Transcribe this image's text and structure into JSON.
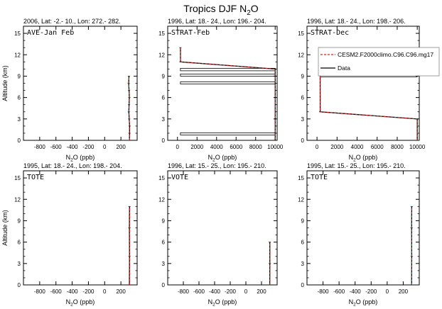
{
  "title": {
    "main": "Tropics DJF N",
    "sub": "2",
    "tail": "O"
  },
  "xlabel": {
    "main": "N",
    "sub": "2",
    "tail": "O (ppb)"
  },
  "ylabel": "Altitude (km)",
  "legend": {
    "items": [
      {
        "label": "CESM2.F2000climo.C96.C96.mg17",
        "color": "#e41a1c",
        "dash": true
      },
      {
        "label": "Data",
        "color": "#000000",
        "dash": false
      }
    ]
  },
  "chart_data": [
    {
      "type": "line",
      "header": "2006, Lat: -2.- 10., Lon: 272.- 282.",
      "label": "AVE-Jan Feb",
      "xlim": [
        -1000,
        400
      ],
      "ylim": [
        0,
        16
      ],
      "xticks": [
        -800,
        -600,
        -400,
        -200,
        0,
        200
      ],
      "yticks": [
        0,
        3,
        6,
        9,
        12,
        15
      ],
      "series": [
        {
          "color": "#000000",
          "points": [
            [
              305,
              0
            ],
            [
              306,
              1
            ],
            [
              307,
              2
            ],
            [
              302,
              3
            ],
            [
              298,
              4
            ],
            [
              300,
              5
            ],
            [
              304,
              6
            ],
            [
              300,
              7
            ],
            [
              296,
              8
            ],
            [
              299,
              9
            ]
          ]
        },
        {
          "color": "#e41a1c",
          "dash": true,
          "points": [
            [
              304,
              0
            ],
            [
              305,
              1
            ],
            [
              305,
              2
            ],
            [
              303,
              3
            ],
            [
              300,
              4
            ],
            [
              301,
              5
            ],
            [
              302,
              6
            ],
            [
              301,
              7
            ],
            [
              298,
              8
            ],
            [
              300,
              9
            ]
          ]
        }
      ],
      "bands": []
    },
    {
      "type": "line",
      "header": "1996, Lat: 18.- 24., Lon: 196.- 204.",
      "label": "STRAT-Feb",
      "xlim": [
        -1000,
        10200
      ],
      "ylim": [
        0,
        16
      ],
      "xticks": [
        0,
        2000,
        4000,
        6000,
        8000,
        10000
      ],
      "yticks": [
        0,
        3,
        6,
        9,
        12,
        15
      ],
      "series": [
        {
          "color": "#000000",
          "points": [
            [
              300,
              13
            ],
            [
              310,
              11
            ],
            [
              10000,
              10
            ],
            [
              10000,
              0
            ]
          ]
        },
        {
          "color": "#e41a1c",
          "dash": true,
          "points": [
            [
              305,
              13
            ],
            [
              312,
              11
            ],
            [
              10000,
              10
            ],
            [
              10000,
              0
            ]
          ]
        }
      ],
      "bands": [
        {
          "x1": 300,
          "x2": 10000,
          "y1": 9.75,
          "y2": 10.1
        },
        {
          "x1": 300,
          "x2": 10000,
          "y1": 9.0,
          "y2": 9.3
        },
        {
          "x1": 300,
          "x2": 10000,
          "y1": 7.9,
          "y2": 8.2
        },
        {
          "x1": 300,
          "x2": 10000,
          "y1": 0.75,
          "y2": 1.05
        }
      ]
    },
    {
      "type": "line",
      "header": "1996, Lat: 18.- 24., Lon: 198.- 206.",
      "label": "STRAT-Dec",
      "xlim": [
        -1000,
        10200
      ],
      "ylim": [
        0,
        16
      ],
      "xticks": [
        0,
        2000,
        4000,
        6000,
        8000,
        10000
      ],
      "yticks": [
        0,
        3,
        6,
        9,
        12,
        15
      ],
      "series": [
        {
          "color": "#000000",
          "points": [
            [
              300,
              13
            ],
            [
              310,
              11
            ],
            [
              320,
              4
            ],
            [
              10000,
              3
            ],
            [
              10000,
              0
            ]
          ]
        },
        {
          "color": "#e41a1c",
          "dash": true,
          "points": [
            [
              305,
              13
            ],
            [
              315,
              11
            ],
            [
              325,
              4
            ],
            [
              10000,
              3
            ],
            [
              10000,
              0
            ]
          ]
        }
      ],
      "bands": [
        {
          "x1": 300,
          "x2": 10000,
          "y1": 8.9,
          "y2": 9.2
        }
      ]
    },
    {
      "type": "line",
      "header": "1995, Lat: 18.- 24., Lon: 198.- 204.",
      "label": "TOTE",
      "xlim": [
        -1000,
        400
      ],
      "ylim": [
        0,
        16
      ],
      "xticks": [
        -800,
        -600,
        -400,
        -200,
        0,
        200
      ],
      "yticks": [
        0,
        3,
        6,
        9,
        12,
        15
      ],
      "series": [
        {
          "color": "#000000",
          "points": [
            [
              305,
              0
            ],
            [
              306,
              4
            ],
            [
              305,
              8
            ],
            [
              306,
              11
            ]
          ]
        },
        {
          "color": "#e41a1c",
          "dash": true,
          "points": [
            [
              307,
              0
            ],
            [
              307,
              4
            ],
            [
              307,
              8
            ],
            [
              307,
              11
            ]
          ]
        }
      ],
      "bands": []
    },
    {
      "type": "line",
      "header": "1996, Lat: 15.- 25., Lon: 195.- 210.",
      "label": "VOTE",
      "xlim": [
        -1000,
        400
      ],
      "ylim": [
        0,
        16
      ],
      "xticks": [
        -800,
        -600,
        -400,
        -200,
        0,
        200
      ],
      "yticks": [
        0,
        3,
        6,
        9,
        12,
        15
      ],
      "series": [
        {
          "color": "#000000",
          "points": [
            [
              305,
              0
            ],
            [
              306,
              3
            ],
            [
              306,
              6
            ]
          ]
        },
        {
          "color": "#e41a1c",
          "dash": true,
          "points": [
            [
              307,
              0
            ],
            [
              307,
              3
            ],
            [
              307,
              6
            ]
          ]
        }
      ],
      "bands": []
    },
    {
      "type": "line",
      "header": "1995, Lat: 15.- 25., Lon: 195.- 210.",
      "label": "TOTE",
      "xlim": [
        -1000,
        400
      ],
      "ylim": [
        0,
        16
      ],
      "xticks": [
        -800,
        -600,
        -400,
        -200,
        0,
        200
      ],
      "yticks": [
        0,
        3,
        6,
        9,
        12,
        15
      ],
      "series": [
        {
          "color": "#000000",
          "points": [
            [
              305,
              0
            ],
            [
              306,
              4
            ],
            [
              305,
              8
            ],
            [
              306,
              11
            ]
          ]
        },
        {
          "color": "#e41a1c",
          "dash": true,
          "points": [
            [
              307,
              0
            ],
            [
              307,
              4
            ],
            [
              307,
              8
            ],
            [
              307,
              11
            ]
          ]
        }
      ],
      "bands": []
    }
  ]
}
